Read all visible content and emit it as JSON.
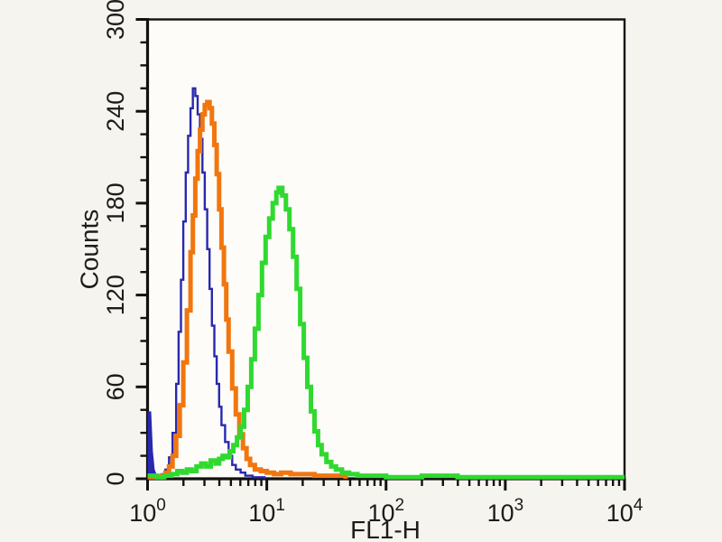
{
  "chart_data": {
    "type": "line",
    "subtype": "flow-cytometry-step-histogram",
    "title": "",
    "xlabel": "FL1-H",
    "ylabel": "Counts",
    "x_scale": "log10",
    "x_log_range": [
      0,
      4
    ],
    "ylim": [
      0,
      300
    ],
    "y_major_ticks": [
      0,
      60,
      120,
      180,
      240,
      300
    ],
    "y_minor_step": 15,
    "x_major_ticks_log": [
      0,
      1,
      2,
      3,
      4
    ],
    "x_tick_base": "10",
    "x_tick_exponents": [
      "0",
      "1",
      "2",
      "3",
      "4"
    ],
    "grid": false,
    "legend": "none",
    "colors": {
      "background": "#f6f4ee",
      "plot_bg": "#fdfcf8",
      "axis": "#111111",
      "text": "#1c1c1c",
      "blue": "#2828b0",
      "orange": "#f1760e",
      "green": "#30d930"
    },
    "series": [
      {
        "name": "blue-curve",
        "color": "#2828b0",
        "stroke_width": 2.4,
        "peak": {
          "x": 2.4,
          "count": 255
        },
        "origin_spike": [
          [
            0,
            0
          ],
          [
            0,
            44
          ],
          [
            0.03,
            44
          ],
          [
            0.045,
            18
          ],
          [
            0.06,
            6
          ],
          [
            0.08,
            2
          ],
          [
            0.08,
            0
          ]
        ],
        "points": [
          [
            0.08,
            2
          ],
          [
            0.12,
            3
          ],
          [
            0.15,
            6
          ],
          [
            0.18,
            14
          ],
          [
            0.21,
            30
          ],
          [
            0.24,
            62
          ],
          [
            0.26,
            96
          ],
          [
            0.28,
            130
          ],
          [
            0.3,
            168
          ],
          [
            0.32,
            200
          ],
          [
            0.34,
            224
          ],
          [
            0.36,
            242
          ],
          [
            0.38,
            255
          ],
          [
            0.4,
            250
          ],
          [
            0.42,
            238
          ],
          [
            0.44,
            222
          ],
          [
            0.46,
            200
          ],
          [
            0.48,
            176
          ],
          [
            0.5,
            150
          ],
          [
            0.52,
            124
          ],
          [
            0.54,
            100
          ],
          [
            0.56,
            80
          ],
          [
            0.58,
            62
          ],
          [
            0.6,
            47
          ],
          [
            0.62,
            35
          ],
          [
            0.65,
            24
          ],
          [
            0.68,
            15
          ],
          [
            0.71,
            9
          ],
          [
            0.74,
            6
          ],
          [
            0.78,
            4
          ],
          [
            0.82,
            2
          ],
          [
            0.88,
            1
          ],
          [
            0.96,
            1
          ],
          [
            0.98,
            0
          ]
        ]
      },
      {
        "name": "orange-curve",
        "color": "#f1760e",
        "stroke_width": 5,
        "peak": {
          "x": 3.2,
          "count": 246
        },
        "points": [
          [
            0,
            1
          ],
          [
            0.08,
            1
          ],
          [
            0.12,
            2
          ],
          [
            0.15,
            4
          ],
          [
            0.18,
            8
          ],
          [
            0.21,
            15
          ],
          [
            0.24,
            28
          ],
          [
            0.27,
            48
          ],
          [
            0.3,
            76
          ],
          [
            0.33,
            110
          ],
          [
            0.36,
            148
          ],
          [
            0.38,
            172
          ],
          [
            0.4,
            196
          ],
          [
            0.42,
            214
          ],
          [
            0.44,
            228
          ],
          [
            0.46,
            238
          ],
          [
            0.48,
            244
          ],
          [
            0.5,
            246
          ],
          [
            0.52,
            242
          ],
          [
            0.54,
            232
          ],
          [
            0.56,
            218
          ],
          [
            0.58,
            199
          ],
          [
            0.6,
            176
          ],
          [
            0.62,
            151
          ],
          [
            0.64,
            127
          ],
          [
            0.66,
            104
          ],
          [
            0.68,
            83
          ],
          [
            0.71,
            59
          ],
          [
            0.74,
            42
          ],
          [
            0.77,
            29
          ],
          [
            0.8,
            20
          ],
          [
            0.83,
            13
          ],
          [
            0.86,
            9
          ],
          [
            0.9,
            6
          ],
          [
            0.95,
            5
          ],
          [
            1.0,
            4
          ],
          [
            1.06,
            3
          ],
          [
            1.12,
            4
          ],
          [
            1.2,
            3
          ],
          [
            1.3,
            3
          ],
          [
            1.4,
            2
          ],
          [
            1.5,
            2
          ],
          [
            1.6,
            2
          ],
          [
            1.66,
            0
          ]
        ]
      },
      {
        "name": "green-curve",
        "color": "#30d930",
        "stroke_width": 5,
        "peak": {
          "x": 12.5,
          "count": 190
        },
        "points": [
          [
            0,
            2
          ],
          [
            0.08,
            1
          ],
          [
            0.14,
            2
          ],
          [
            0.2,
            3
          ],
          [
            0.25,
            5
          ],
          [
            0.29,
            4
          ],
          [
            0.33,
            6
          ],
          [
            0.37,
            5
          ],
          [
            0.41,
            8
          ],
          [
            0.45,
            10
          ],
          [
            0.49,
            8
          ],
          [
            0.53,
            12
          ],
          [
            0.57,
            10
          ],
          [
            0.6,
            13
          ],
          [
            0.63,
            15
          ],
          [
            0.66,
            14
          ],
          [
            0.69,
            18
          ],
          [
            0.72,
            22
          ],
          [
            0.75,
            27
          ],
          [
            0.78,
            34
          ],
          [
            0.81,
            45
          ],
          [
            0.84,
            60
          ],
          [
            0.87,
            78
          ],
          [
            0.9,
            98
          ],
          [
            0.93,
            120
          ],
          [
            0.96,
            141
          ],
          [
            0.99,
            158
          ],
          [
            1.02,
            170
          ],
          [
            1.05,
            180
          ],
          [
            1.08,
            187
          ],
          [
            1.1,
            190
          ],
          [
            1.13,
            185
          ],
          [
            1.16,
            176
          ],
          [
            1.19,
            163
          ],
          [
            1.22,
            145
          ],
          [
            1.25,
            124
          ],
          [
            1.28,
            101
          ],
          [
            1.31,
            79
          ],
          [
            1.34,
            60
          ],
          [
            1.37,
            44
          ],
          [
            1.4,
            31
          ],
          [
            1.43,
            22
          ],
          [
            1.46,
            16
          ],
          [
            1.5,
            11
          ],
          [
            1.54,
            8
          ],
          [
            1.58,
            6
          ],
          [
            1.63,
            4
          ],
          [
            1.69,
            3
          ],
          [
            1.76,
            2
          ],
          [
            1.86,
            2
          ],
          [
            2.0,
            1
          ],
          [
            2.3,
            2
          ],
          [
            2.6,
            1
          ],
          [
            3.0,
            1
          ],
          [
            3.4,
            1
          ],
          [
            3.7,
            1
          ],
          [
            4.0,
            1
          ]
        ]
      }
    ]
  }
}
